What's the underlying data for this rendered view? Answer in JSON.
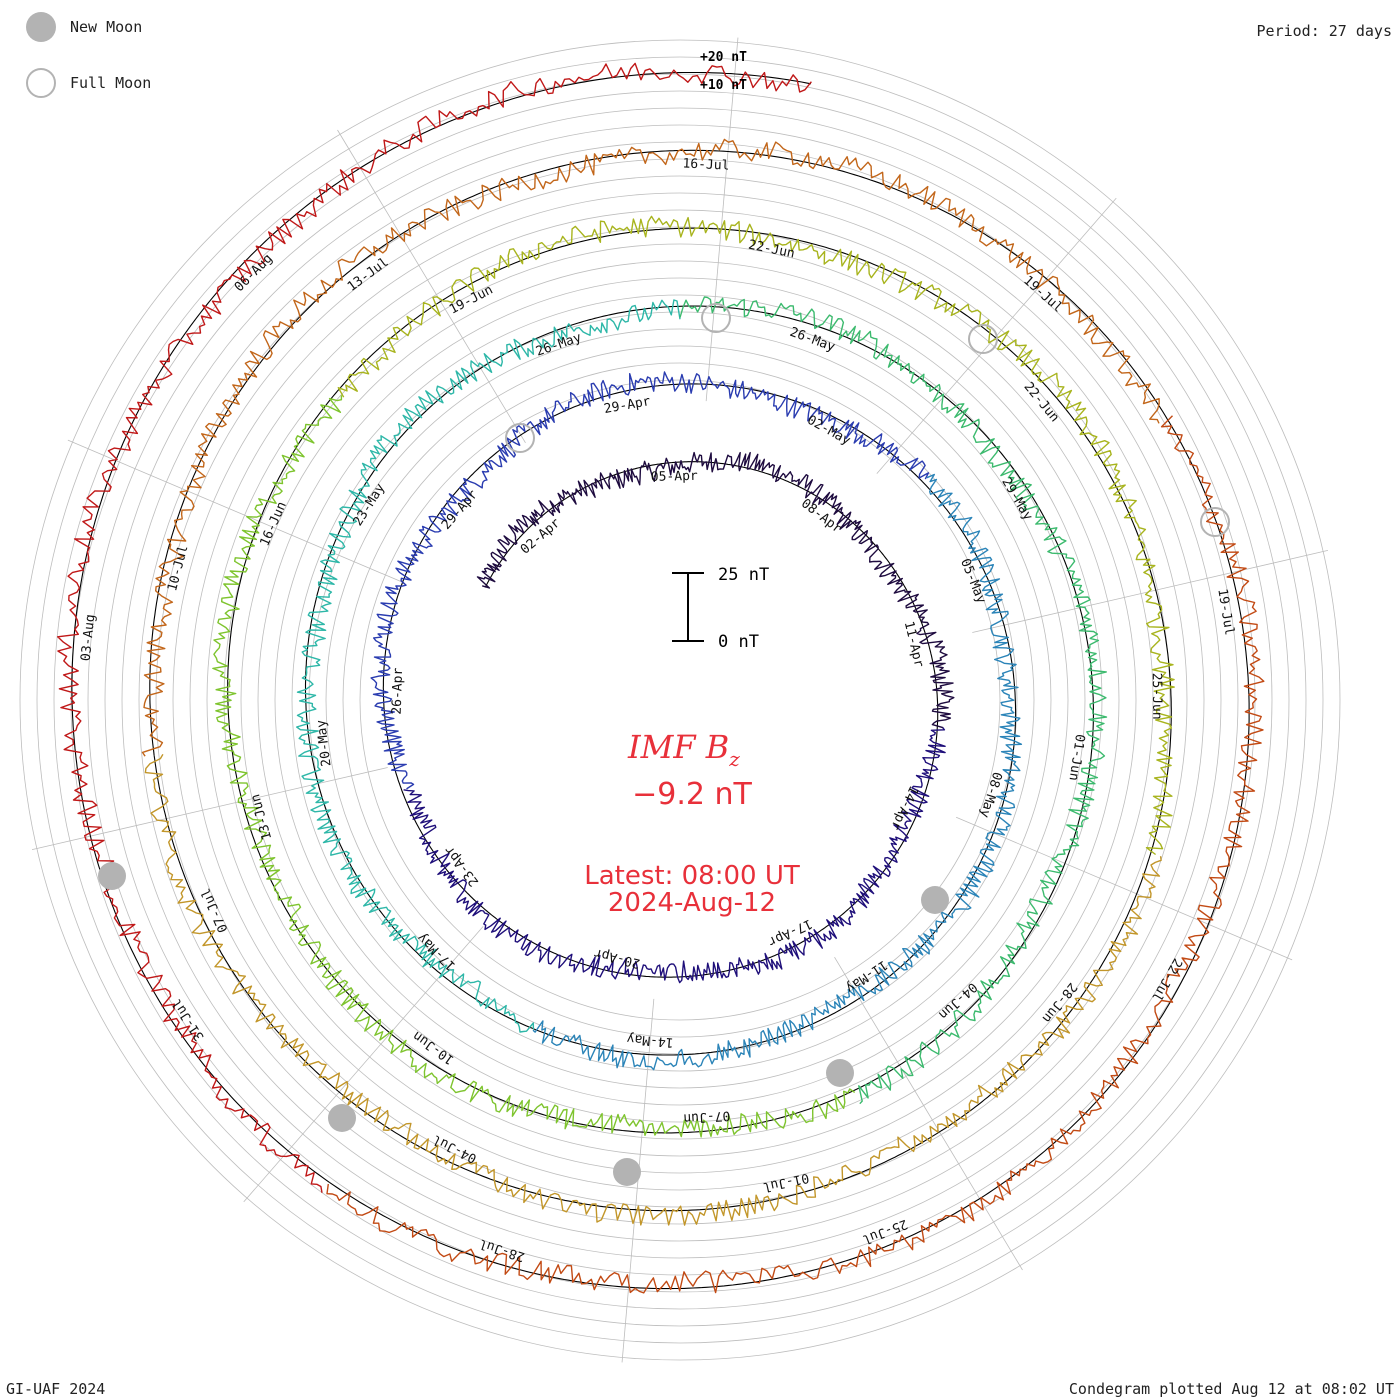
{
  "legend": {
    "new_moon": "New Moon",
    "full_moon": "Full Moon"
  },
  "period_label": "Period: 27 days",
  "footer_left": "GI-UAF 2024",
  "footer_right": "Condegram plotted Aug 12 at 08:02 UT",
  "scale": {
    "top_label": "+20 nT",
    "second_label": "+10 nT",
    "bar_top": "25 nT",
    "bar_bottom": "0 nT"
  },
  "center": {
    "title": "IMF B",
    "title_sub": "z",
    "value": "−9.2 nT",
    "latest": "Latest: 08:00 UT",
    "date": "2024-Aug-12"
  },
  "colors": {
    "rings": [
      "#1e0b3f",
      "#1f0f7a",
      "#2a3cb0",
      "#2b84b8",
      "#2eb7a8",
      "#3cba6e",
      "#7ec42e",
      "#a8b41e",
      "#c2962a",
      "#c2661a",
      "#c24a14",
      "#c01818"
    ],
    "grid": "#bdbdbd",
    "moon": "#b3b3b3",
    "annotation": "#e8303a"
  },
  "chart_data": {
    "type": "line",
    "title": "IMF Bz",
    "period_days": 27,
    "ylabel": "nT",
    "latest_value_nT": -9.2,
    "rotations": [
      {
        "ticks": [
          "02-Apr",
          "05-Apr",
          "08-Apr",
          "11-Apr",
          "14-Apr",
          "17-Apr",
          "20-Apr",
          "23-Apr",
          "26-Apr",
          "29-Apr"
        ]
      },
      {
        "ticks": [
          "29-Apr",
          "02-May",
          "05-May",
          "08-May",
          "11-May",
          "14-May",
          "17-May",
          "20-May",
          "23-May",
          "26-May"
        ]
      },
      {
        "ticks": [
          "26-May",
          "29-May",
          "01-Jun",
          "04-Jun",
          "07-Jun",
          "10-Jun",
          "13-Jun",
          "16-Jun",
          "19-Jun",
          "22-Jun"
        ]
      },
      {
        "ticks": [
          "22-Jun",
          "25-Jun",
          "28-Jun",
          "01-Jul",
          "04-Jul",
          "07-Jul",
          "10-Jul",
          "13-Jul",
          "16-Jul",
          "19-Jul"
        ]
      },
      {
        "ticks": [
          "19-Jul",
          "22-Jul",
          "25-Jul",
          "28-Jul",
          "31-Jul",
          "03-Aug",
          "06-Aug"
        ]
      }
    ],
    "new_moons": [
      "08-Apr",
      "08-May",
      "06-Jun",
      "05-Jul",
      "04-Aug"
    ],
    "full_moons": [
      "23-Apr",
      "23-May",
      "22-Jun",
      "21-Jul"
    ]
  }
}
